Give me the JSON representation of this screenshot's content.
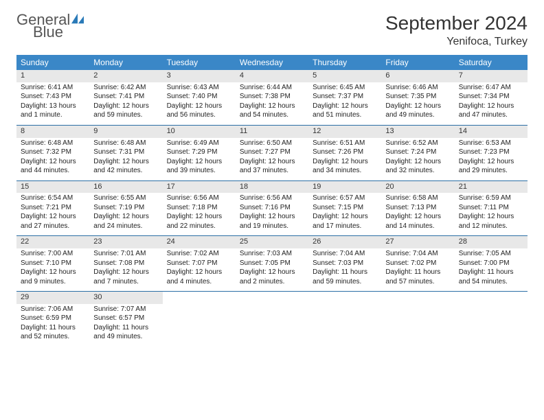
{
  "brand": {
    "name1": "General",
    "name2": "Blue"
  },
  "title": "September 2024",
  "location": "Yenifoca, Turkey",
  "colors": {
    "header_bg": "#3a87c7",
    "week_border": "#2a6ea5",
    "daynum_bg": "#e8e8e8",
    "text": "#222222",
    "brand_gray": "#555555",
    "brand_blue": "#2a7ab8"
  },
  "weekdays": [
    "Sunday",
    "Monday",
    "Tuesday",
    "Wednesday",
    "Thursday",
    "Friday",
    "Saturday"
  ],
  "weeks": [
    [
      {
        "n": "1",
        "sr": "6:41 AM",
        "ss": "7:43 PM",
        "d1": "13 hours",
        "d2": "and 1 minute."
      },
      {
        "n": "2",
        "sr": "6:42 AM",
        "ss": "7:41 PM",
        "d1": "12 hours",
        "d2": "and 59 minutes."
      },
      {
        "n": "3",
        "sr": "6:43 AM",
        "ss": "7:40 PM",
        "d1": "12 hours",
        "d2": "and 56 minutes."
      },
      {
        "n": "4",
        "sr": "6:44 AM",
        "ss": "7:38 PM",
        "d1": "12 hours",
        "d2": "and 54 minutes."
      },
      {
        "n": "5",
        "sr": "6:45 AM",
        "ss": "7:37 PM",
        "d1": "12 hours",
        "d2": "and 51 minutes."
      },
      {
        "n": "6",
        "sr": "6:46 AM",
        "ss": "7:35 PM",
        "d1": "12 hours",
        "d2": "and 49 minutes."
      },
      {
        "n": "7",
        "sr": "6:47 AM",
        "ss": "7:34 PM",
        "d1": "12 hours",
        "d2": "and 47 minutes."
      }
    ],
    [
      {
        "n": "8",
        "sr": "6:48 AM",
        "ss": "7:32 PM",
        "d1": "12 hours",
        "d2": "and 44 minutes."
      },
      {
        "n": "9",
        "sr": "6:48 AM",
        "ss": "7:31 PM",
        "d1": "12 hours",
        "d2": "and 42 minutes."
      },
      {
        "n": "10",
        "sr": "6:49 AM",
        "ss": "7:29 PM",
        "d1": "12 hours",
        "d2": "and 39 minutes."
      },
      {
        "n": "11",
        "sr": "6:50 AM",
        "ss": "7:27 PM",
        "d1": "12 hours",
        "d2": "and 37 minutes."
      },
      {
        "n": "12",
        "sr": "6:51 AM",
        "ss": "7:26 PM",
        "d1": "12 hours",
        "d2": "and 34 minutes."
      },
      {
        "n": "13",
        "sr": "6:52 AM",
        "ss": "7:24 PM",
        "d1": "12 hours",
        "d2": "and 32 minutes."
      },
      {
        "n": "14",
        "sr": "6:53 AM",
        "ss": "7:23 PM",
        "d1": "12 hours",
        "d2": "and 29 minutes."
      }
    ],
    [
      {
        "n": "15",
        "sr": "6:54 AM",
        "ss": "7:21 PM",
        "d1": "12 hours",
        "d2": "and 27 minutes."
      },
      {
        "n": "16",
        "sr": "6:55 AM",
        "ss": "7:19 PM",
        "d1": "12 hours",
        "d2": "and 24 minutes."
      },
      {
        "n": "17",
        "sr": "6:56 AM",
        "ss": "7:18 PM",
        "d1": "12 hours",
        "d2": "and 22 minutes."
      },
      {
        "n": "18",
        "sr": "6:56 AM",
        "ss": "7:16 PM",
        "d1": "12 hours",
        "d2": "and 19 minutes."
      },
      {
        "n": "19",
        "sr": "6:57 AM",
        "ss": "7:15 PM",
        "d1": "12 hours",
        "d2": "and 17 minutes."
      },
      {
        "n": "20",
        "sr": "6:58 AM",
        "ss": "7:13 PM",
        "d1": "12 hours",
        "d2": "and 14 minutes."
      },
      {
        "n": "21",
        "sr": "6:59 AM",
        "ss": "7:11 PM",
        "d1": "12 hours",
        "d2": "and 12 minutes."
      }
    ],
    [
      {
        "n": "22",
        "sr": "7:00 AM",
        "ss": "7:10 PM",
        "d1": "12 hours",
        "d2": "and 9 minutes."
      },
      {
        "n": "23",
        "sr": "7:01 AM",
        "ss": "7:08 PM",
        "d1": "12 hours",
        "d2": "and 7 minutes."
      },
      {
        "n": "24",
        "sr": "7:02 AM",
        "ss": "7:07 PM",
        "d1": "12 hours",
        "d2": "and 4 minutes."
      },
      {
        "n": "25",
        "sr": "7:03 AM",
        "ss": "7:05 PM",
        "d1": "12 hours",
        "d2": "and 2 minutes."
      },
      {
        "n": "26",
        "sr": "7:04 AM",
        "ss": "7:03 PM",
        "d1": "11 hours",
        "d2": "and 59 minutes."
      },
      {
        "n": "27",
        "sr": "7:04 AM",
        "ss": "7:02 PM",
        "d1": "11 hours",
        "d2": "and 57 minutes."
      },
      {
        "n": "28",
        "sr": "7:05 AM",
        "ss": "7:00 PM",
        "d1": "11 hours",
        "d2": "and 54 minutes."
      }
    ],
    [
      {
        "n": "29",
        "sr": "7:06 AM",
        "ss": "6:59 PM",
        "d1": "11 hours",
        "d2": "and 52 minutes."
      },
      {
        "n": "30",
        "sr": "7:07 AM",
        "ss": "6:57 PM",
        "d1": "11 hours",
        "d2": "and 49 minutes."
      },
      null,
      null,
      null,
      null,
      null
    ]
  ],
  "labels": {
    "sunrise": "Sunrise:",
    "sunset": "Sunset:",
    "daylight": "Daylight:"
  }
}
